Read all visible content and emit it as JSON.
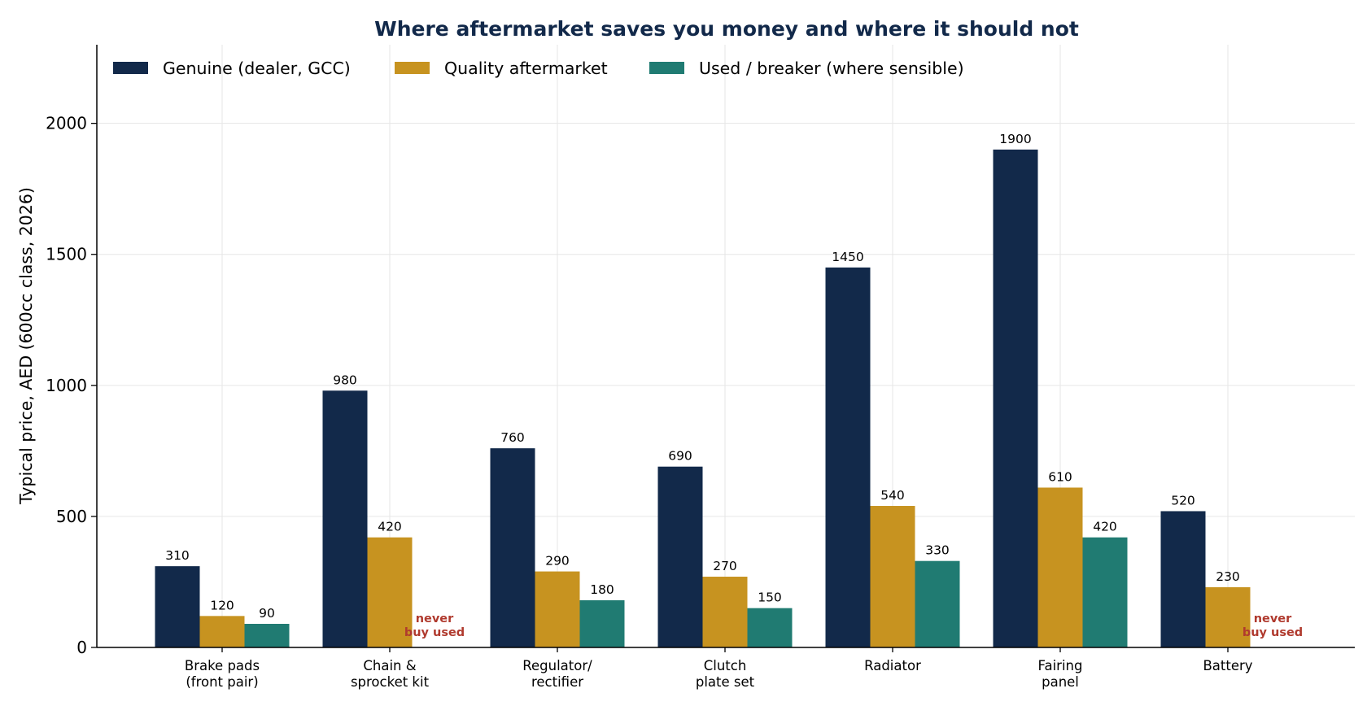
{
  "chart_data": {
    "type": "bar",
    "title": "Where aftermarket saves you money and where it should not",
    "xlabel": "",
    "ylabel": "Typical price, AED (600cc class, 2026)",
    "ylim": [
      0,
      2300
    ],
    "yticks": [
      0,
      500,
      1000,
      1500,
      2000
    ],
    "grid": true,
    "legend_position": "top-left",
    "categories": [
      [
        "Brake pads",
        "(front pair)"
      ],
      [
        "Chain &",
        "sprocket kit"
      ],
      [
        "Regulator/",
        "rectifier"
      ],
      [
        "Clutch",
        "plate set"
      ],
      [
        "Radiator"
      ],
      [
        "Fairing",
        "panel"
      ],
      [
        "Battery"
      ]
    ],
    "series": [
      {
        "name": "Genuine (dealer, GCC)",
        "color": "#12294a",
        "values": [
          310,
          980,
          760,
          690,
          1450,
          1900,
          520
        ]
      },
      {
        "name": "Quality aftermarket",
        "color": "#c79320",
        "values": [
          120,
          420,
          290,
          270,
          540,
          610,
          230
        ]
      },
      {
        "name": "Used / breaker (where sensible)",
        "color": "#207b72",
        "values": [
          90,
          null,
          180,
          150,
          330,
          420,
          null
        ]
      }
    ],
    "missing_value_note": [
      "never",
      "buy used"
    ],
    "note_color": "#b03a2e"
  }
}
